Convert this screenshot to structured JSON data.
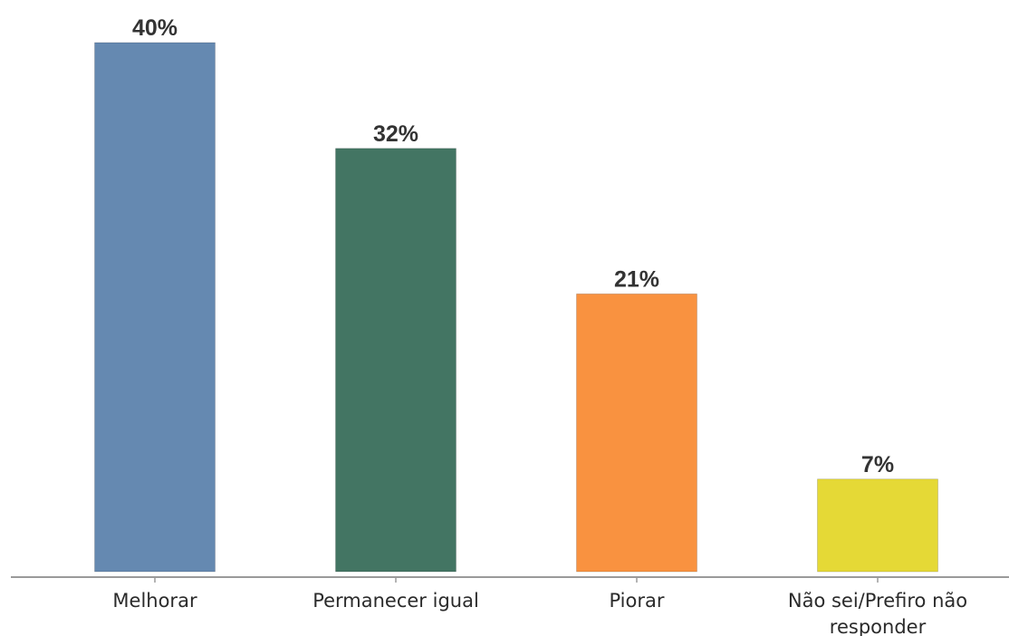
{
  "chart_data": {
    "type": "bar",
    "categories": [
      [
        "Melhorar"
      ],
      [
        "Permanecer igual"
      ],
      [
        "Piorar"
      ],
      [
        "Não sei/Prefiro não",
        "responder"
      ]
    ],
    "values": [
      40,
      32,
      21,
      7
    ],
    "value_labels": [
      "40%",
      "32%",
      "21%",
      "7%"
    ],
    "colors": [
      "#6589b1",
      "#437563",
      "#f99240",
      "#e5d936"
    ],
    "axis_color": "#9a9a9a",
    "ylim": [
      0,
      40
    ],
    "grid": false,
    "legend": "none",
    "title": "",
    "xlabel": "",
    "ylabel": ""
  }
}
